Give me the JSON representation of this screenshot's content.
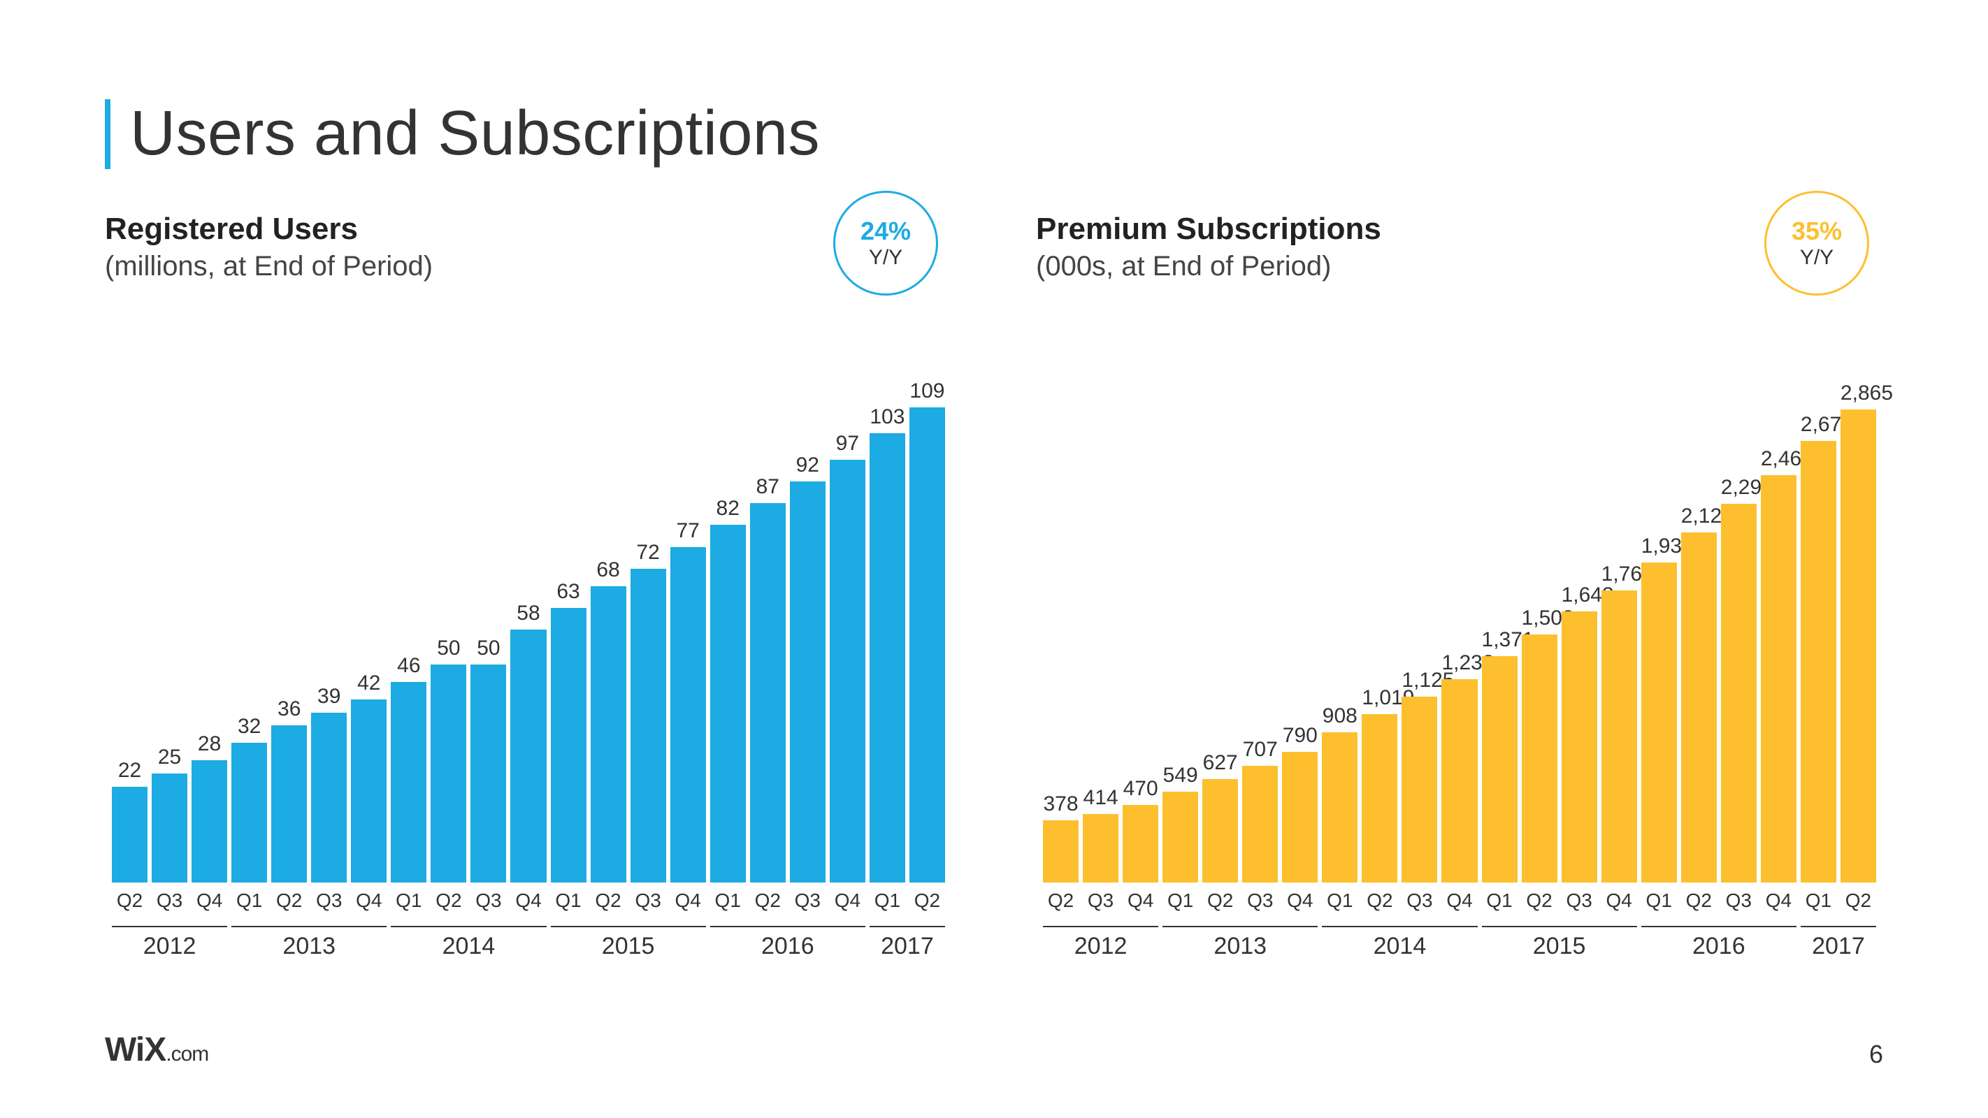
{
  "slide": {
    "title": "Users and Subscriptions",
    "title_accent_color": "#1cabe2",
    "page_number": "6",
    "logo_text_main": "WiX",
    "logo_text_suffix": ".com",
    "logo_dot_color": "#fdbf2d"
  },
  "chart_left": {
    "type": "bar",
    "title": "Registered Users",
    "subtitle": "(millions, at End of Period)",
    "bar_color": "#1cabe2",
    "badge_pct": "24%",
    "badge_yy": "Y/Y",
    "badge_border_color": "#1cabe2",
    "badge_text_color": "#1cabe2",
    "value_fontsize": 30,
    "title_fontsize": 44,
    "subtitle_fontsize": 40,
    "ylim_max": 125,
    "quarters": [
      "Q2",
      "Q3",
      "Q4",
      "Q1",
      "Q2",
      "Q3",
      "Q4",
      "Q1",
      "Q2",
      "Q3",
      "Q4",
      "Q1",
      "Q2",
      "Q3",
      "Q4",
      "Q1",
      "Q2",
      "Q3",
      "Q4",
      "Q1",
      "Q2"
    ],
    "values": [
      22,
      25,
      28,
      32,
      36,
      39,
      42,
      46,
      50,
      50,
      58,
      63,
      68,
      72,
      77,
      82,
      87,
      92,
      97,
      103,
      109
    ],
    "labels": [
      "22",
      "25",
      "28",
      "32",
      "36",
      "39",
      "42",
      "46",
      "50",
      "50",
      "58",
      "63",
      "68",
      "72",
      "77",
      "82",
      "87",
      "92",
      "97",
      "103",
      "109"
    ],
    "year_groups": [
      {
        "label": "2012",
        "start": 0,
        "count": 3
      },
      {
        "label": "2013",
        "start": 3,
        "count": 4
      },
      {
        "label": "2014",
        "start": 7,
        "count": 4
      },
      {
        "label": "2015",
        "start": 11,
        "count": 4
      },
      {
        "label": "2016",
        "start": 15,
        "count": 4
      },
      {
        "label": "2017",
        "start": 19,
        "count": 2
      }
    ]
  },
  "chart_right": {
    "type": "bar",
    "title": "Premium Subscriptions",
    "subtitle": "(000s, at End of Period)",
    "bar_color": "#fdbf2d",
    "badge_pct": "35%",
    "badge_yy": "Y/Y",
    "badge_border_color": "#fdbf2d",
    "badge_text_color": "#fdbf2d",
    "value_fontsize": 30,
    "title_fontsize": 44,
    "subtitle_fontsize": 40,
    "ylim_max": 3300,
    "quarters": [
      "Q2",
      "Q3",
      "Q4",
      "Q1",
      "Q2",
      "Q3",
      "Q4",
      "Q1",
      "Q2",
      "Q3",
      "Q4",
      "Q1",
      "Q2",
      "Q3",
      "Q4",
      "Q1",
      "Q2",
      "Q3",
      "Q4",
      "Q1",
      "Q2"
    ],
    "values": [
      378,
      414,
      470,
      549,
      627,
      707,
      790,
      908,
      1019,
      1125,
      1233,
      1371,
      1503,
      1643,
      1767,
      1938,
      2121,
      2294,
      2465,
      2673,
      2865
    ],
    "labels": [
      "378",
      "414",
      "470",
      "549",
      "627",
      "707",
      "790",
      "908",
      "1,019",
      "1,125",
      "1,233",
      "1,371",
      "1,503",
      "1,643",
      "1,767",
      "1,938",
      "2,121",
      "2,294",
      "2,465",
      "2,673",
      "2,865"
    ],
    "year_groups": [
      {
        "label": "2012",
        "start": 0,
        "count": 3
      },
      {
        "label": "2013",
        "start": 3,
        "count": 4
      },
      {
        "label": "2014",
        "start": 7,
        "count": 4
      },
      {
        "label": "2015",
        "start": 11,
        "count": 4
      },
      {
        "label": "2016",
        "start": 15,
        "count": 4
      },
      {
        "label": "2017",
        "start": 19,
        "count": 2
      }
    ]
  }
}
